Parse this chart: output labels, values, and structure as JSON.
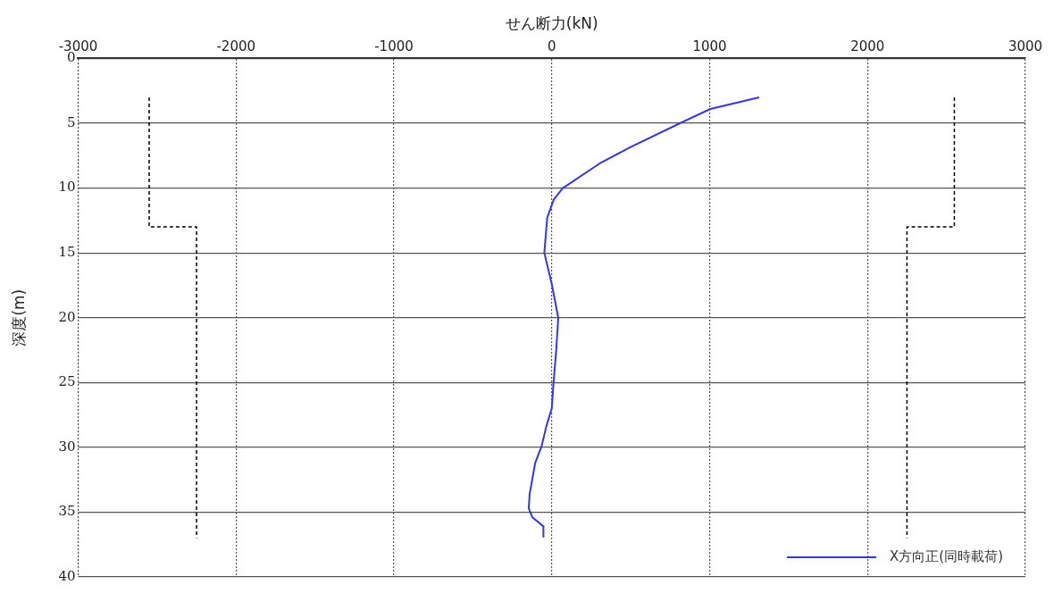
{
  "chart_data": {
    "type": "line",
    "xlabel": "せん断力(kN)",
    "ylabel": "深度(m)",
    "xlim": [
      -3000,
      3000
    ],
    "xticks": [
      -3000,
      -2000,
      -1000,
      0,
      1000,
      2000,
      3000
    ],
    "ylim": [
      40,
      0
    ],
    "yticks": [
      0,
      5,
      10,
      15,
      20,
      25,
      30,
      35,
      40
    ],
    "grid": true,
    "legend": "bottom right",
    "marker": "none",
    "series": [
      {
        "name": "X方向正(同時載荷)",
        "color": "#3333ff",
        "line_style": "solid",
        "x": [
          1314,
          1005,
          812,
          497,
          304,
          70,
          12,
          -29,
          -47,
          0,
          41,
          29,
          12,
          0,
          -35,
          -64,
          -105,
          -140,
          -146,
          -123,
          -53,
          -53
        ],
        "values": [
          3.0,
          3.9,
          5.0,
          6.85,
          8.1,
          10,
          10.9,
          12.3,
          15,
          17.4,
          20,
          22.4,
          24.9,
          27,
          28.4,
          29.9,
          31.2,
          33.6,
          34.7,
          35.4,
          36.1,
          36.9
        ]
      },
      {
        "color": "#000000",
        "line_style": "dashed",
        "x": [
          -2550,
          -2550,
          -2250,
          -2250
        ],
        "values": [
          3,
          13,
          13,
          37
        ]
      },
      {
        "color": "#000000",
        "line_style": "dashed",
        "x": [
          2550,
          2550,
          2250,
          2250
        ],
        "values": [
          3,
          13,
          13,
          37
        ]
      }
    ]
  }
}
